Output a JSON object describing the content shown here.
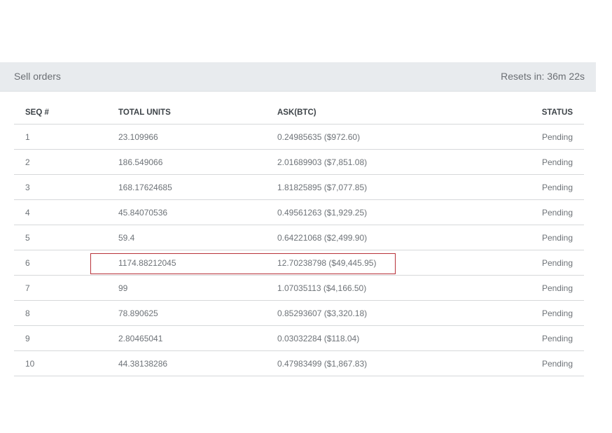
{
  "header": {
    "title": "Sell orders",
    "resets": "Resets in: 36m 22s"
  },
  "table": {
    "columns": [
      "SEQ #",
      "TOTAL UNITS",
      "ASK(BTC)",
      "STATUS"
    ],
    "rows": [
      [
        "1",
        "23.109966",
        "0.24985635 ($972.60)",
        "Pending"
      ],
      [
        "2",
        "186.549066",
        "2.01689903 ($7,851.08)",
        "Pending"
      ],
      [
        "3",
        "168.17624685",
        "1.81825895 ($7,077.85)",
        "Pending"
      ],
      [
        "4",
        "45.84070536",
        "0.49561263 ($1,929.25)",
        "Pending"
      ],
      [
        "5",
        "59.4",
        "0.64221068 ($2,499.90)",
        "Pending"
      ],
      [
        "6",
        "1174.88212045",
        "12.70238798 ($49,445.95)",
        "Pending"
      ],
      [
        "7",
        "99",
        "1.07035113 ($4,166.50)",
        "Pending"
      ],
      [
        "8",
        "78.890625",
        "0.85293607 ($3,320.18)",
        "Pending"
      ],
      [
        "9",
        "2.80465041",
        "0.03032284 ($118.04)",
        "Pending"
      ],
      [
        "10",
        "44.38138286",
        "0.47983499 ($1,867.83)",
        "Pending"
      ]
    ]
  },
  "highlight_color": "#b8323a"
}
